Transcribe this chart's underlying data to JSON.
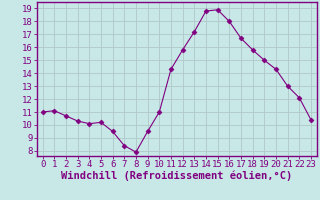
{
  "x": [
    0,
    1,
    2,
    3,
    4,
    5,
    6,
    7,
    8,
    9,
    10,
    11,
    12,
    13,
    14,
    15,
    16,
    17,
    18,
    19,
    20,
    21,
    22,
    23
  ],
  "y": [
    11.0,
    11.1,
    10.7,
    10.3,
    10.1,
    10.2,
    9.5,
    8.4,
    7.9,
    9.5,
    11.0,
    14.3,
    15.8,
    17.2,
    18.8,
    18.9,
    18.0,
    16.7,
    15.8,
    15.0,
    14.3,
    13.0,
    12.1,
    10.4
  ],
  "line_color": "#800080",
  "marker": "D",
  "marker_size": 2.5,
  "bg_color": "#c8e8e8",
  "grid_color": "#b0c8c8",
  "xlabel": "Windchill (Refroidissement éolien,°C)",
  "ylabel_ticks": [
    8,
    9,
    10,
    11,
    12,
    13,
    14,
    15,
    16,
    17,
    18,
    19
  ],
  "ylim": [
    7.6,
    19.5
  ],
  "xlim": [
    -0.5,
    23.5
  ],
  "xlabel_fontsize": 7.5,
  "tick_fontsize": 6.5,
  "spine_color": "#800080",
  "tick_color": "#800080",
  "border_color": "#800080"
}
